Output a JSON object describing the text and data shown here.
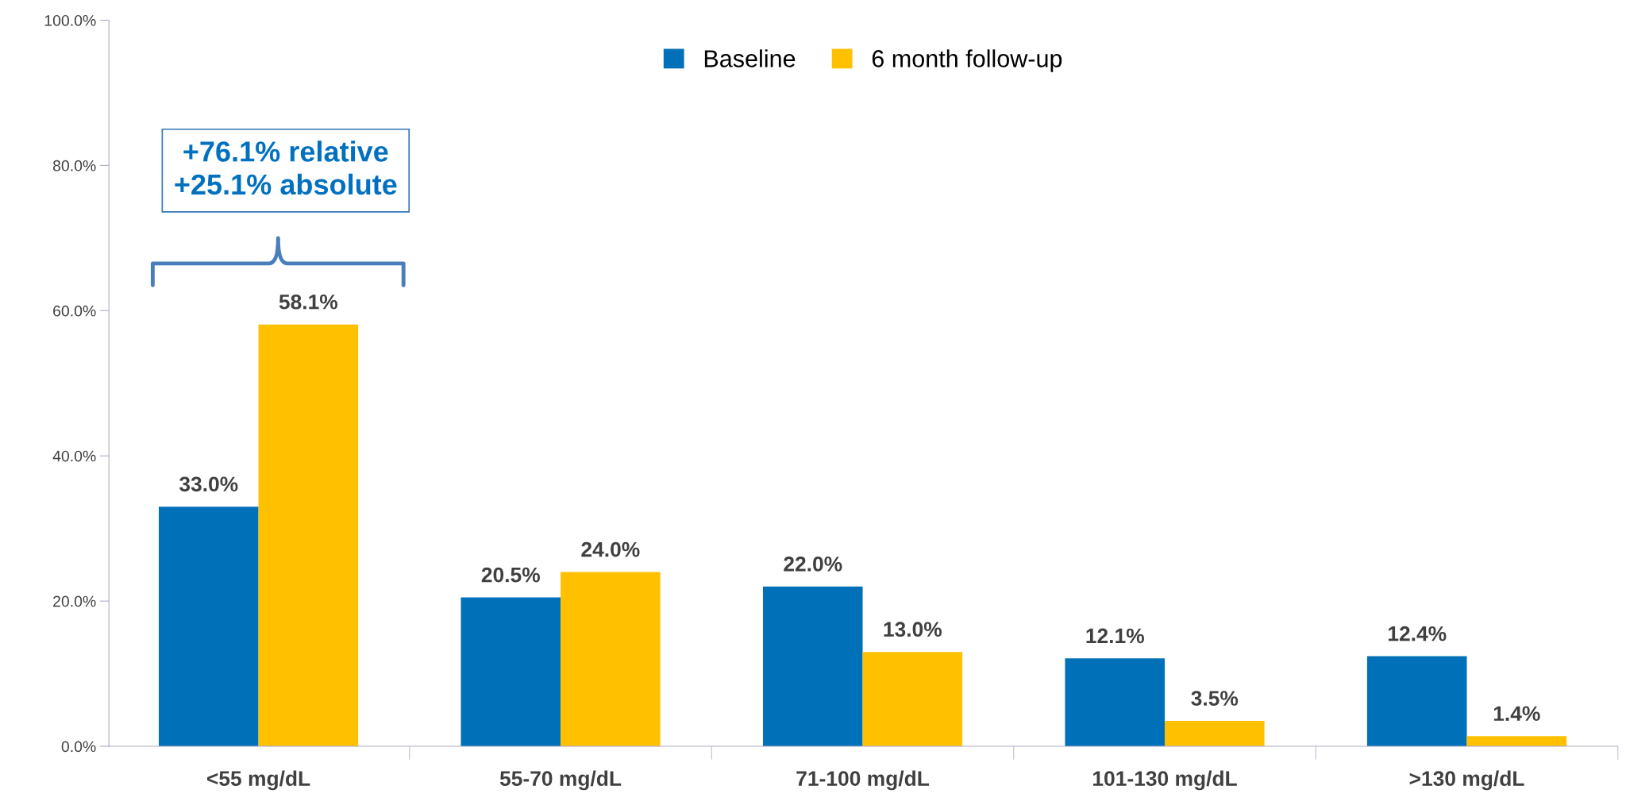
{
  "chart_data": {
    "type": "bar",
    "categories": [
      "<55 mg/dL",
      "55-70 mg/dL",
      "71-100 mg/dL",
      "101-130 mg/dL",
      ">130 mg/dL"
    ],
    "series": [
      {
        "name": "Baseline",
        "color": "#0070b8",
        "values": [
          33.0,
          20.5,
          22.0,
          12.1,
          12.4
        ],
        "value_labels": [
          "33.0%",
          "20.5%",
          "22.0%",
          "12.1%",
          "12.4%"
        ]
      },
      {
        "name": "6 month follow-up",
        "color": "#ffc000",
        "values": [
          58.1,
          24.0,
          13.0,
          3.5,
          1.4
        ],
        "value_labels": [
          "58.1%",
          "24.0%",
          "13.0%",
          "3.5%",
          "1.4%"
        ]
      }
    ],
    "ylim": [
      0,
      100
    ],
    "yticks": [
      {
        "value": 0,
        "label": "0.0%"
      },
      {
        "value": 20,
        "label": "20.0%"
      },
      {
        "value": 40,
        "label": "40.0%"
      },
      {
        "value": 60,
        "label": "60.0%"
      },
      {
        "value": 80,
        "label": "80.0%"
      },
      {
        "value": 100,
        "label": "100.0%"
      }
    ],
    "annotations": [
      "+76.1% relative\n+25.1% absolute"
    ],
    "grid": false,
    "legend": "top"
  }
}
